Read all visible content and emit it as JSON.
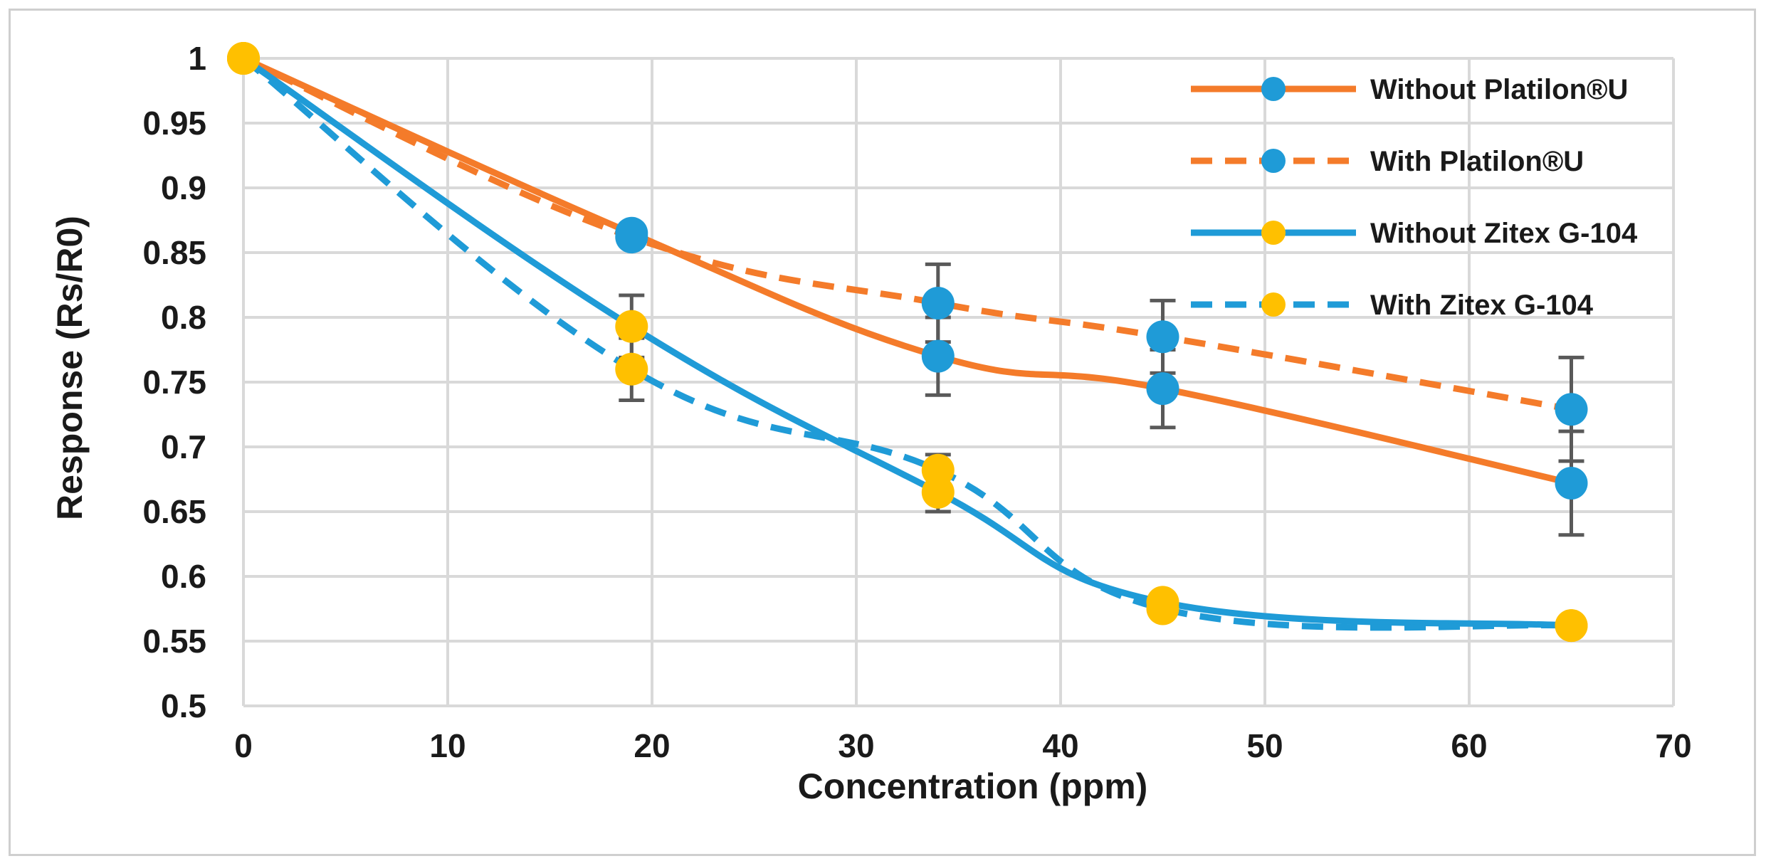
{
  "chart_data": {
    "type": "line",
    "title": "",
    "xlabel": "Concentration (ppm)",
    "ylabel": "Response (Rs/R0)",
    "xlim": [
      0,
      70
    ],
    "ylim": [
      0.5,
      1
    ],
    "x_ticks": [
      0,
      10,
      20,
      30,
      40,
      50,
      60,
      70
    ],
    "x_tick_labels": [
      "0",
      "10",
      "20",
      "30",
      "40",
      "50",
      "60",
      "70"
    ],
    "y_ticks": [
      0.5,
      0.55,
      0.6,
      0.65,
      0.7,
      0.75,
      0.8,
      0.85,
      0.9,
      0.95,
      1
    ],
    "y_tick_labels": [
      "0.5",
      "0.55",
      "0.6",
      "0.65",
      "0.7",
      "0.75",
      "0.8",
      "0.85",
      "0.9",
      "0.95",
      "1"
    ],
    "grid": true,
    "legend_position": "top-right",
    "series": [
      {
        "name": "Without Platilon®U",
        "line_color": "#f47b2a",
        "marker_color": "#1f9bd7",
        "dashed": false,
        "x": [
          0,
          19,
          34,
          45,
          65
        ],
        "y": [
          1.0,
          0.865,
          0.77,
          0.745,
          0.672
        ],
        "error": [
          0,
          0,
          0.03,
          0.03,
          0.04
        ]
      },
      {
        "name": "With Platilon®U",
        "line_color": "#f47b2a",
        "marker_color": "#1f9bd7",
        "dashed": true,
        "x": [
          0,
          19,
          34,
          45,
          65
        ],
        "y": [
          1.0,
          0.862,
          0.811,
          0.785,
          0.729
        ],
        "error": [
          0,
          0,
          0.03,
          0.028,
          0.04
        ]
      },
      {
        "name": "Without Zitex G-104",
        "line_color": "#1f9bd7",
        "marker_color": "#ffc000",
        "dashed": false,
        "x": [
          0,
          19,
          34,
          45,
          65
        ],
        "y": [
          1.0,
          0.793,
          0.665,
          0.58,
          0.562
        ],
        "error": [
          0,
          0.024,
          0.015,
          0,
          0
        ]
      },
      {
        "name": "With Zitex G-104",
        "line_color": "#1f9bd7",
        "marker_color": "#ffc000",
        "dashed": true,
        "x": [
          0,
          19,
          34,
          45,
          65
        ],
        "y": [
          1.0,
          0.76,
          0.682,
          0.575,
          0.562
        ],
        "error": [
          0,
          0.024,
          0.012,
          0,
          0
        ]
      }
    ]
  },
  "colors": {
    "grid": "#d9d9d9",
    "error_bar": "#595959",
    "text": "#1a1a1a"
  }
}
